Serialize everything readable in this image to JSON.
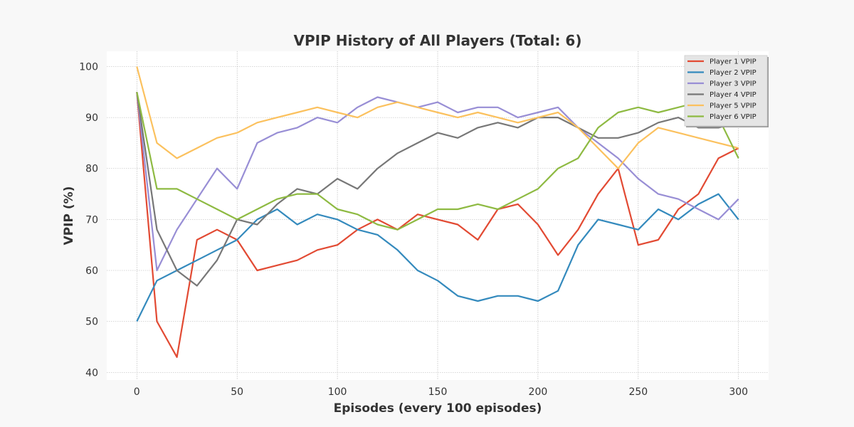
{
  "chart_data": {
    "type": "line",
    "title": "VPIP History of All Players (Total: 6)",
    "xlabel": "Episodes (every 100 episodes)",
    "ylabel": "VPIP (%)",
    "xlim": [
      -15,
      315
    ],
    "ylim": [
      38.5,
      103
    ],
    "x_ticks": [
      0,
      50,
      100,
      150,
      200,
      250,
      300
    ],
    "y_ticks": [
      40,
      50,
      60,
      70,
      80,
      90,
      100
    ],
    "grid": true,
    "legend_position": "top-right",
    "x_start": 0,
    "x_step": 10,
    "series": [
      {
        "name": "Player 1 VPIP",
        "color": "#e24a33",
        "values": [
          95,
          50,
          43,
          66,
          68,
          66,
          60,
          61,
          62,
          64,
          65,
          68,
          70,
          68,
          71,
          70,
          69,
          66,
          72,
          73,
          69,
          63,
          68,
          75,
          80,
          65,
          66,
          72,
          75,
          82,
          84
        ]
      },
      {
        "name": "Player 2 VPIP",
        "color": "#348abd",
        "values": [
          50,
          58,
          60,
          62,
          64,
          66,
          70,
          72,
          69,
          71,
          70,
          68,
          67,
          64,
          60,
          58,
          55,
          54,
          55,
          55,
          54,
          56,
          65,
          70,
          69,
          68,
          72,
          70,
          73,
          75,
          70
        ]
      },
      {
        "name": "Player 3 VPIP",
        "color": "#988ed5",
        "values": [
          95,
          60,
          68,
          74,
          80,
          76,
          85,
          87,
          88,
          90,
          89,
          92,
          94,
          93,
          92,
          93,
          91,
          92,
          92,
          90,
          91,
          92,
          88,
          85,
          82,
          78,
          75,
          74,
          72,
          70,
          74
        ]
      },
      {
        "name": "Player 4 VPIP",
        "color": "#777777",
        "values": [
          95,
          68,
          60,
          57,
          62,
          70,
          69,
          73,
          76,
          75,
          78,
          76,
          80,
          83,
          85,
          87,
          86,
          88,
          89,
          88,
          90,
          90,
          88,
          86,
          86,
          87,
          89,
          90,
          88,
          88,
          89
        ]
      },
      {
        "name": "Player 5 VPIP",
        "color": "#fbc15e",
        "values": [
          100,
          85,
          82,
          84,
          86,
          87,
          89,
          90,
          91,
          92,
          91,
          90,
          92,
          93,
          92,
          91,
          90,
          91,
          90,
          89,
          90,
          91,
          88,
          84,
          80,
          85,
          88,
          87,
          86,
          85,
          84
        ]
      },
      {
        "name": "Player 6 VPIP",
        "color": "#8eba42",
        "values": [
          95,
          76,
          76,
          74,
          72,
          70,
          72,
          74,
          75,
          75,
          72,
          71,
          69,
          68,
          70,
          72,
          72,
          73,
          72,
          74,
          76,
          80,
          82,
          88,
          91,
          92,
          91,
          92,
          93,
          90,
          82
        ]
      }
    ]
  }
}
